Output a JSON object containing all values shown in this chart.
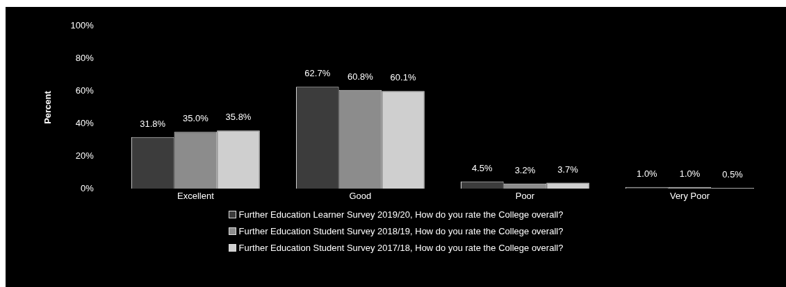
{
  "chart_data": {
    "type": "bar",
    "ylabel": "Percent",
    "categories": [
      "Excellent",
      "Good",
      "Poor",
      "Very Poor"
    ],
    "series": [
      {
        "name": "Further Education Learner Survey 2019/20, How do you rate the College overall?",
        "color": "#3c3c3c",
        "values": [
          31.8,
          62.7,
          4.5,
          1.0
        ],
        "value_labels": [
          "31.8%",
          "62.7%",
          "4.5%",
          "1.0%"
        ]
      },
      {
        "name": "Further Education Student Survey 2018/19, How do you rate the College overall?",
        "color": "#8c8c8c",
        "values": [
          35.0,
          60.8,
          3.2,
          1.0
        ],
        "value_labels": [
          "35.0%",
          "60.8%",
          "3.2%",
          "1.0%"
        ]
      },
      {
        "name": "Further Education Student Survey 2017/18, How do you rate the College overall?",
        "color": "#cfcfcf",
        "values": [
          35.8,
          60.1,
          3.7,
          0.5
        ],
        "value_labels": [
          "35.8%",
          "60.1%",
          "3.7%",
          "0.5%"
        ]
      }
    ],
    "ylim": [
      0,
      100
    ],
    "yticks": [
      {
        "value": 0,
        "label": "0%"
      },
      {
        "value": 20,
        "label": "20%"
      },
      {
        "value": 40,
        "label": "40%"
      },
      {
        "value": 60,
        "label": "60%"
      },
      {
        "value": 80,
        "label": "80%"
      },
      {
        "value": 100,
        "label": "100%"
      }
    ],
    "grid": false,
    "legend": "bottom"
  }
}
